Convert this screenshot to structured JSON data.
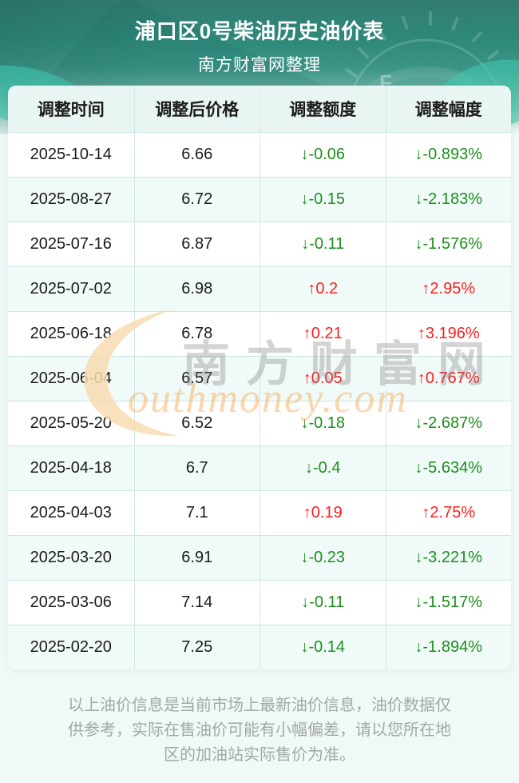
{
  "header": {
    "title": "浦口区0号柴油历史油价表",
    "subtitle": "南方财富网整理"
  },
  "table": {
    "columns": [
      "调整时间",
      "调整后价格",
      "调整额度",
      "调整幅度"
    ],
    "rows": [
      {
        "date": "2025-10-14",
        "price": "6.66",
        "change": "↓-0.06",
        "percent": "↓-0.893%",
        "direction": "down"
      },
      {
        "date": "2025-08-27",
        "price": "6.72",
        "change": "↓-0.15",
        "percent": "↓-2.183%",
        "direction": "down"
      },
      {
        "date": "2025-07-16",
        "price": "6.87",
        "change": "↓-0.11",
        "percent": "↓-1.576%",
        "direction": "down"
      },
      {
        "date": "2025-07-02",
        "price": "6.98",
        "change": "↑0.2",
        "percent": "↑2.95%",
        "direction": "up"
      },
      {
        "date": "2025-06-18",
        "price": "6.78",
        "change": "↑0.21",
        "percent": "↑3.196%",
        "direction": "up"
      },
      {
        "date": "2025-06-04",
        "price": "6.57",
        "change": "↑0.05",
        "percent": "↑0.767%",
        "direction": "up"
      },
      {
        "date": "2025-05-20",
        "price": "6.52",
        "change": "↓-0.18",
        "percent": "↓-2.687%",
        "direction": "down"
      },
      {
        "date": "2025-04-18",
        "price": "6.7",
        "change": "↓-0.4",
        "percent": "↓-5.634%",
        "direction": "down"
      },
      {
        "date": "2025-04-03",
        "price": "7.1",
        "change": "↑0.19",
        "percent": "↑2.75%",
        "direction": "up"
      },
      {
        "date": "2025-03-20",
        "price": "6.91",
        "change": "↓-0.23",
        "percent": "↓-3.221%",
        "direction": "down"
      },
      {
        "date": "2025-03-06",
        "price": "7.14",
        "change": "↓-0.11",
        "percent": "↓-1.517%",
        "direction": "down"
      },
      {
        "date": "2025-02-20",
        "price": "7.25",
        "change": "↓-0.14",
        "percent": "↓-1.894%",
        "direction": "down"
      }
    ]
  },
  "watermark": {
    "cn": "南方财富网",
    "en": "outhmoney.com"
  },
  "footer": {
    "disclaimer": "以上油价信息是当前市场上最新油价信息，油价数据仅供参考，实际在售油价可能有小幅偏差，请以您所在地区的加油站实际售价为准。"
  },
  "colors": {
    "up": "#fa2020",
    "down": "#1d8f1d",
    "accent_teal": "#2f8d7e"
  }
}
